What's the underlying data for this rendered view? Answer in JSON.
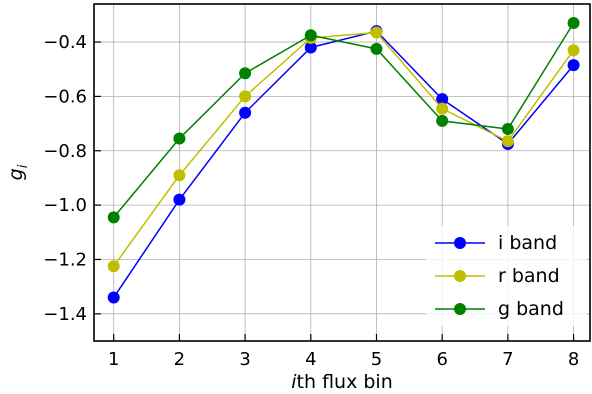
{
  "chart_data": {
    "type": "line",
    "title": "",
    "xlabel_italic": "i",
    "xlabel_rest": "th flux bin",
    "ylabel_main": "g",
    "ylabel_sub": "i",
    "categories": [
      1,
      2,
      3,
      4,
      5,
      6,
      7,
      8
    ],
    "x_ticks": [
      "1",
      "2",
      "3",
      "4",
      "5",
      "6",
      "7",
      "8"
    ],
    "y_ticks": [
      -1.4,
      -1.2,
      -1.0,
      -0.8,
      -0.6,
      -0.4
    ],
    "y_tick_labels": [
      "−1.4",
      "−1.2",
      "−1.0",
      "−0.8",
      "−0.6",
      "−0.4"
    ],
    "xlim": [
      0.7,
      8.25
    ],
    "ylim": [
      -1.5,
      -0.26
    ],
    "grid": true,
    "legend_position": "lower-right",
    "series": [
      {
        "name": "i band",
        "color": "#0000ff",
        "values": [
          -1.34,
          -0.98,
          -0.66,
          -0.42,
          -0.36,
          -0.61,
          -0.775,
          -0.485
        ]
      },
      {
        "name": "r band",
        "color": "#bfbf00",
        "values": [
          -1.225,
          -0.89,
          -0.6,
          -0.385,
          -0.365,
          -0.645,
          -0.765,
          -0.43
        ]
      },
      {
        "name": "g band",
        "color": "#008000",
        "values": [
          -1.045,
          -0.755,
          -0.515,
          -0.375,
          -0.425,
          -0.69,
          -0.72,
          -0.33
        ]
      }
    ]
  }
}
